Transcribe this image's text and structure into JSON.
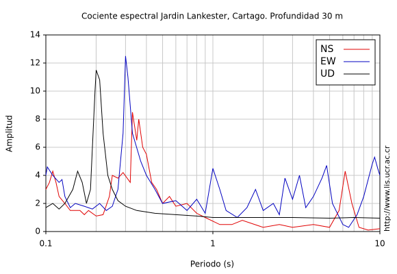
{
  "chart_data": {
    "type": "line",
    "title": "Cociente espectral Jardin Lankester, Cartago. Profundidad 30 m",
    "x_label": "Periodo (s)",
    "y_label": "Amplitud",
    "annotation": "http://www.lis.ucr.ac.cr",
    "xscale": "log",
    "xlim": [
      0.1,
      10
    ],
    "xticks": [
      0.1,
      1,
      10
    ],
    "ylim": [
      0,
      14
    ],
    "yticks": [
      0,
      2,
      4,
      6,
      8,
      10,
      12,
      14
    ],
    "grid": true,
    "legend": "upper right",
    "series": [
      {
        "name": "NS",
        "color": "#e00000",
        "x": [
          0.1,
          0.105,
          0.11,
          0.115,
          0.12,
          0.13,
          0.14,
          0.16,
          0.17,
          0.18,
          0.2,
          0.22,
          0.24,
          0.25,
          0.27,
          0.29,
          0.32,
          0.33,
          0.35,
          0.36,
          0.38,
          0.4,
          0.43,
          0.46,
          0.5,
          0.55,
          0.6,
          0.7,
          0.8,
          0.9,
          1.1,
          1.3,
          1.5,
          2,
          2.5,
          3,
          4,
          5,
          5.7,
          6.2,
          6.8,
          7.5,
          8.5,
          10
        ],
        "values": [
          3,
          3.5,
          4.3,
          3.5,
          2.5,
          2,
          1.5,
          1.5,
          1.2,
          1.5,
          1.1,
          1.2,
          2.5,
          4,
          3.8,
          4.2,
          3.5,
          8.5,
          6.5,
          8,
          6,
          5.5,
          3.5,
          3,
          2,
          2.5,
          1.8,
          2,
          1.3,
          1,
          0.5,
          0.5,
          0.8,
          0.3,
          0.5,
          0.3,
          0.5,
          0.3,
          1.5,
          4.3,
          2,
          0.3,
          0.1,
          0.2
        ]
      },
      {
        "name": "EW",
        "color": "#0000c0",
        "x": [
          0.1,
          0.102,
          0.11,
          0.12,
          0.125,
          0.13,
          0.14,
          0.15,
          0.17,
          0.19,
          0.21,
          0.23,
          0.25,
          0.27,
          0.29,
          0.3,
          0.31,
          0.33,
          0.37,
          0.4,
          0.45,
          0.5,
          0.6,
          0.7,
          0.8,
          0.9,
          1,
          1.1,
          1.2,
          1.4,
          1.6,
          1.8,
          2,
          2.3,
          2.5,
          2.7,
          3,
          3.3,
          3.6,
          4,
          4.5,
          4.8,
          5.2,
          6,
          6.5,
          7.3,
          8,
          9,
          9.3,
          9.7,
          10
        ],
        "values": [
          4,
          4.6,
          4,
          3.5,
          3.7,
          2.5,
          1.7,
          2,
          1.8,
          1.6,
          2,
          1.5,
          1.8,
          3,
          7,
          12.5,
          11,
          7,
          5,
          4,
          3,
          2,
          2.2,
          1.5,
          2.3,
          1.3,
          4.5,
          3,
          1.5,
          1,
          1.7,
          3,
          1.5,
          2,
          1.2,
          3.8,
          2.3,
          4,
          1.7,
          2.5,
          3.8,
          4.7,
          2,
          0.5,
          0.3,
          1.2,
          2.5,
          4.8,
          5.3,
          4.5,
          4
        ]
      },
      {
        "name": "UD",
        "color": "#000000",
        "x": [
          0.1,
          0.11,
          0.12,
          0.13,
          0.145,
          0.155,
          0.165,
          0.175,
          0.185,
          0.19,
          0.197,
          0.2,
          0.21,
          0.22,
          0.235,
          0.25,
          0.27,
          0.3,
          0.35,
          0.45,
          0.6,
          0.8,
          1,
          2,
          3,
          5,
          7,
          10
        ],
        "values": [
          1.7,
          2,
          1.6,
          2,
          3,
          4.3,
          3.5,
          2,
          3,
          6,
          10,
          11.5,
          10.8,
          7,
          4,
          3,
          2.2,
          1.8,
          1.5,
          1.3,
          1.2,
          1.1,
          1,
          1,
          1,
          0.95,
          1,
          0.95
        ]
      }
    ]
  }
}
